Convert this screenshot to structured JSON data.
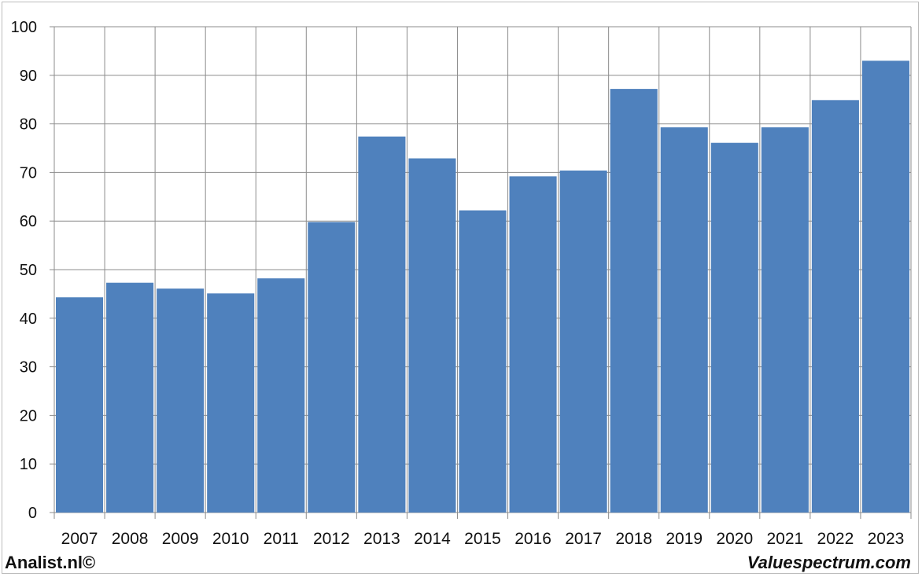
{
  "footer": {
    "left": "Analist.nl©",
    "right": "Valuespectrum.com"
  },
  "colors": {
    "bar": "#4f81bd",
    "grid": "#8c8c8c"
  },
  "chart_data": {
    "type": "bar",
    "categories": [
      "2007",
      "2008",
      "2009",
      "2010",
      "2011",
      "2012",
      "2013",
      "2014",
      "2015",
      "2016",
      "2017",
      "2018",
      "2019",
      "2020",
      "2021",
      "2022",
      "2023"
    ],
    "values": [
      44.3,
      47.3,
      46.1,
      45.1,
      48.2,
      59.8,
      77.4,
      72.9,
      62.2,
      69.2,
      70.4,
      87.2,
      79.3,
      76.1,
      79.3,
      84.9,
      93.0
    ],
    "ylim": [
      0,
      100
    ],
    "yticks": [
      0,
      10,
      20,
      30,
      40,
      50,
      60,
      70,
      80,
      90,
      100
    ],
    "title": "",
    "xlabel": "",
    "ylabel": "",
    "grid": true,
    "legend": "none"
  }
}
